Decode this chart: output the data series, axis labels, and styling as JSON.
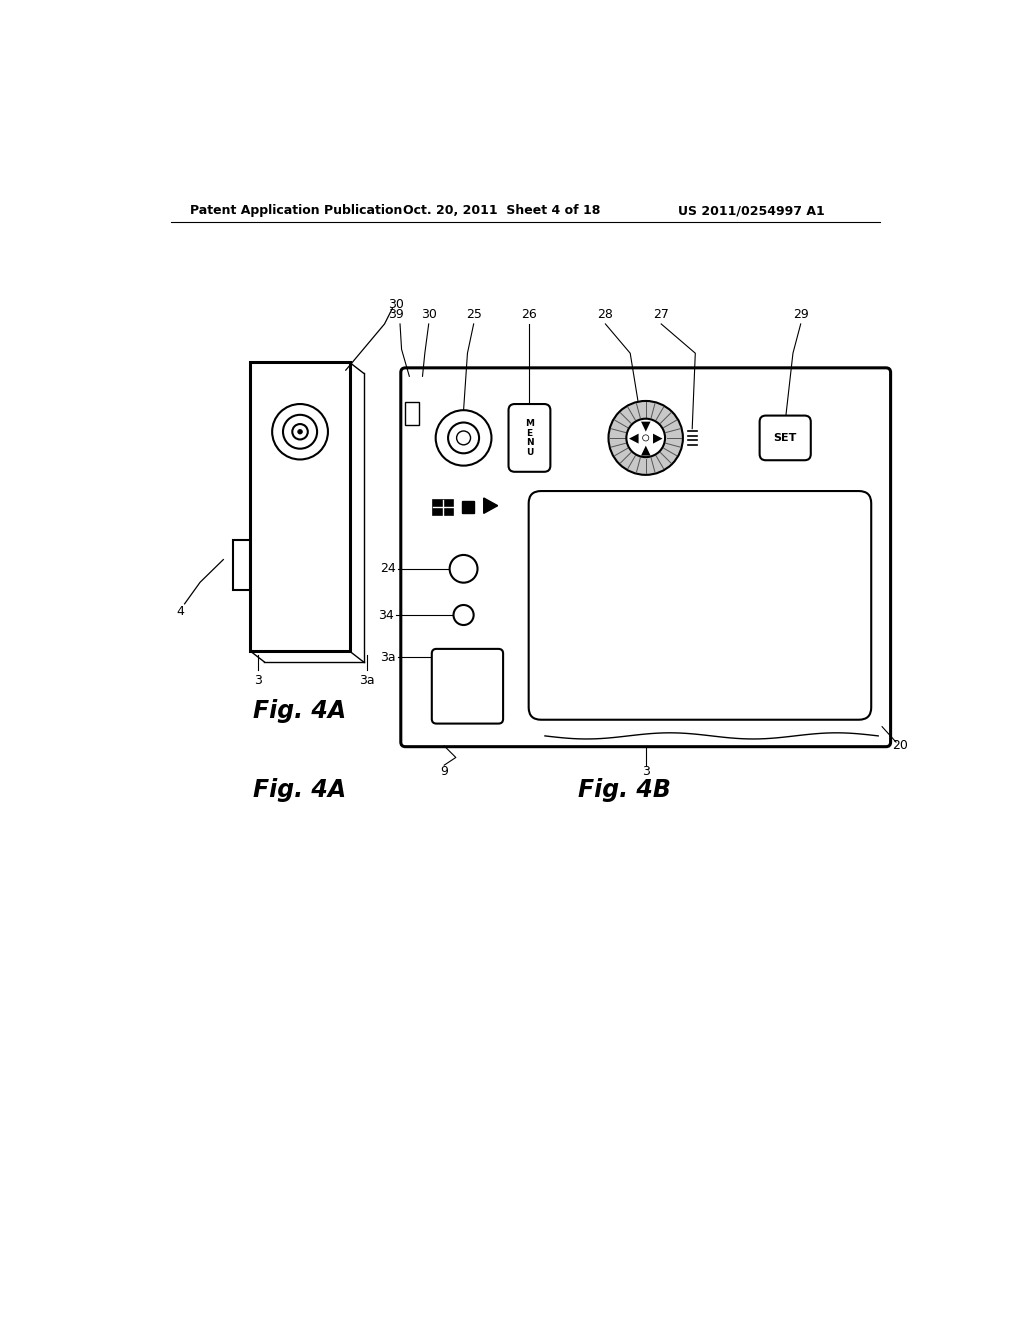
{
  "bg_color": "#ffffff",
  "line_color": "#000000",
  "header_left": "Patent Application Publication",
  "header_mid": "Oct. 20, 2011  Sheet 4 of 18",
  "header_right": "US 2011/0254997 A1",
  "fig_label_A": "Fig. 4A",
  "fig_label_B": "Fig. 4B",
  "label_30_A": "30",
  "label_4": "4",
  "label_3_A_left": "3",
  "label_3a_A": "3a",
  "label_39": "39",
  "label_30_B": "30",
  "label_25": "25",
  "label_26": "26",
  "label_28": "28",
  "label_27": "27",
  "label_29": "29",
  "label_24": "24",
  "label_34": "34",
  "label_3a_B": "3a",
  "label_9": "9",
  "label_3_B": "3",
  "label_20": "20"
}
